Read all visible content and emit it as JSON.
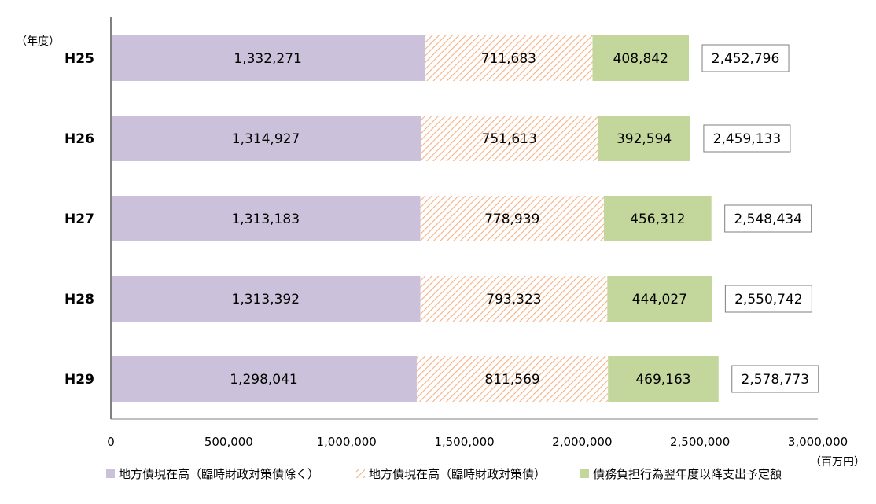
{
  "chart_data": {
    "type": "bar",
    "orientation": "horizontal",
    "stacked": true,
    "y_axis_title": "（年度）",
    "x_unit_label": "（百万円）",
    "categories": [
      "H25",
      "H26",
      "H27",
      "H28",
      "H29"
    ],
    "series": [
      {
        "name": "地方債現在高（臨時財政対策債除く）",
        "values": [
          1332271,
          1314927,
          1313183,
          1313392,
          1298041
        ],
        "value_labels": [
          "1,332,271",
          "1,314,927",
          "1,313,183",
          "1,313,392",
          "1,298,041"
        ],
        "fill": "solid",
        "color": "#ccc1da"
      },
      {
        "name": "地方債現在高（臨時財政対策債）",
        "values": [
          711683,
          751613,
          778939,
          793323,
          811569
        ],
        "value_labels": [
          "711,683",
          "751,613",
          "778,939",
          "793,323",
          "811,569"
        ],
        "fill": "hatch",
        "color": "#f4b183"
      },
      {
        "name": "債務負担行為翌年度以降支出予定額",
        "values": [
          408842,
          392594,
          456312,
          444027,
          469163
        ],
        "value_labels": [
          "408,842",
          "392,594",
          "456,312",
          "444,027",
          "469,163"
        ],
        "fill": "solid",
        "color": "#c3d69b"
      }
    ],
    "totals": [
      2452796,
      2459133,
      2548434,
      2550742,
      2578773
    ],
    "total_labels": [
      "2,452,796",
      "2,459,133",
      "2,548,434",
      "2,550,742",
      "2,578,773"
    ],
    "xlim": [
      0,
      3000000
    ],
    "xticks": [
      0,
      500000,
      1000000,
      1500000,
      2000000,
      2500000,
      3000000
    ],
    "xtick_labels": [
      "0",
      "500,000",
      "1,000,000",
      "1,500,000",
      "2,000,000",
      "2,500,000",
      "3,000,000"
    ],
    "grid": false,
    "legend_position": "bottom"
  }
}
